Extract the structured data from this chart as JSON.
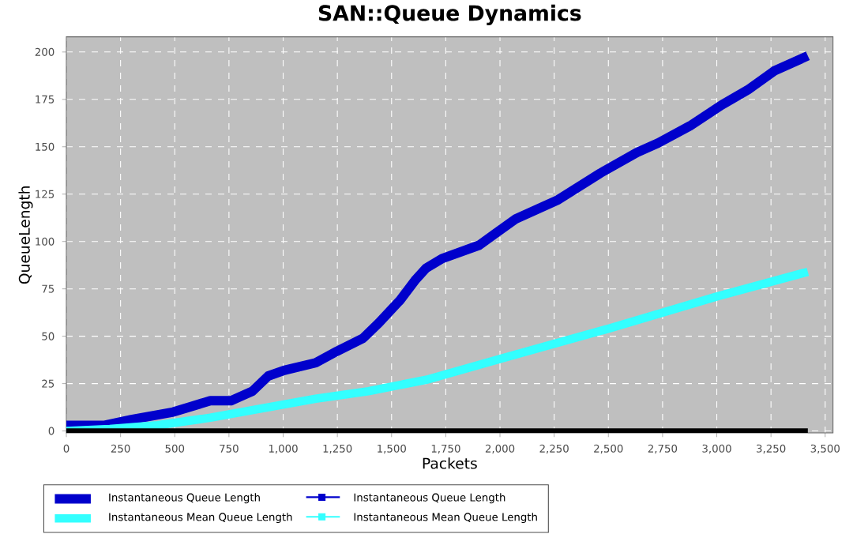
{
  "chart_data": {
    "type": "line",
    "title": "SAN::Queue Dynamics",
    "xlabel": "Packets",
    "ylabel": "QueueLength",
    "xlim": [
      0,
      3536
    ],
    "ylim": [
      -1,
      208
    ],
    "xticks": [
      0,
      250,
      500,
      750,
      {
        "value": 1000,
        "label": "1,000"
      },
      {
        "value": 1250,
        "label": "1,250"
      },
      {
        "value": 1500,
        "label": "1,500"
      },
      {
        "value": 1750,
        "label": "1,750"
      },
      {
        "value": 2000,
        "label": "2,000"
      },
      {
        "value": 2250,
        "label": "2,250"
      },
      {
        "value": 2500,
        "label": "2,500"
      },
      {
        "value": 2750,
        "label": "2,750"
      },
      {
        "value": 3000,
        "label": "3,000"
      },
      {
        "value": 3250,
        "label": "3,250"
      },
      {
        "value": 3500,
        "label": "3,500"
      }
    ],
    "yticks": [
      0,
      25,
      50,
      75,
      100,
      125,
      150,
      175,
      200
    ],
    "grid": true,
    "legend": "bottom",
    "series": [
      {
        "name": "Instantaneous Queue Length",
        "color": "#0000cc",
        "x": [
          0,
          177,
          300,
          493,
          664,
          760,
          858,
          931,
          1004,
          1150,
          1247,
          1369,
          1441,
          1539,
          1612,
          1660,
          1733,
          1903,
          1976,
          2074,
          2268,
          2462,
          2632,
          2730,
          2876,
          3022,
          3143,
          3265,
          3420
        ],
        "values": [
          3,
          3,
          6,
          10,
          16,
          16,
          21,
          29,
          32,
          36,
          42,
          49,
          57,
          69,
          80,
          86,
          91,
          98,
          104,
          112,
          122,
          136,
          147,
          152,
          161,
          172,
          180,
          190,
          198
        ]
      },
      {
        "name": "Instantaneous Mean Queue Length",
        "color": "#33ffff",
        "x": [
          0,
          200,
          420,
          664,
          907,
          1150,
          1393,
          1660,
          2000,
          2500,
          3000,
          3420
        ],
        "values": [
          0,
          1,
          3,
          7,
          12,
          17,
          21,
          27,
          38,
          54,
          71,
          84
        ]
      },
      {
        "color": "#000000",
        "x": [
          0,
          3420
        ],
        "values": [
          0,
          0
        ]
      }
    ]
  }
}
